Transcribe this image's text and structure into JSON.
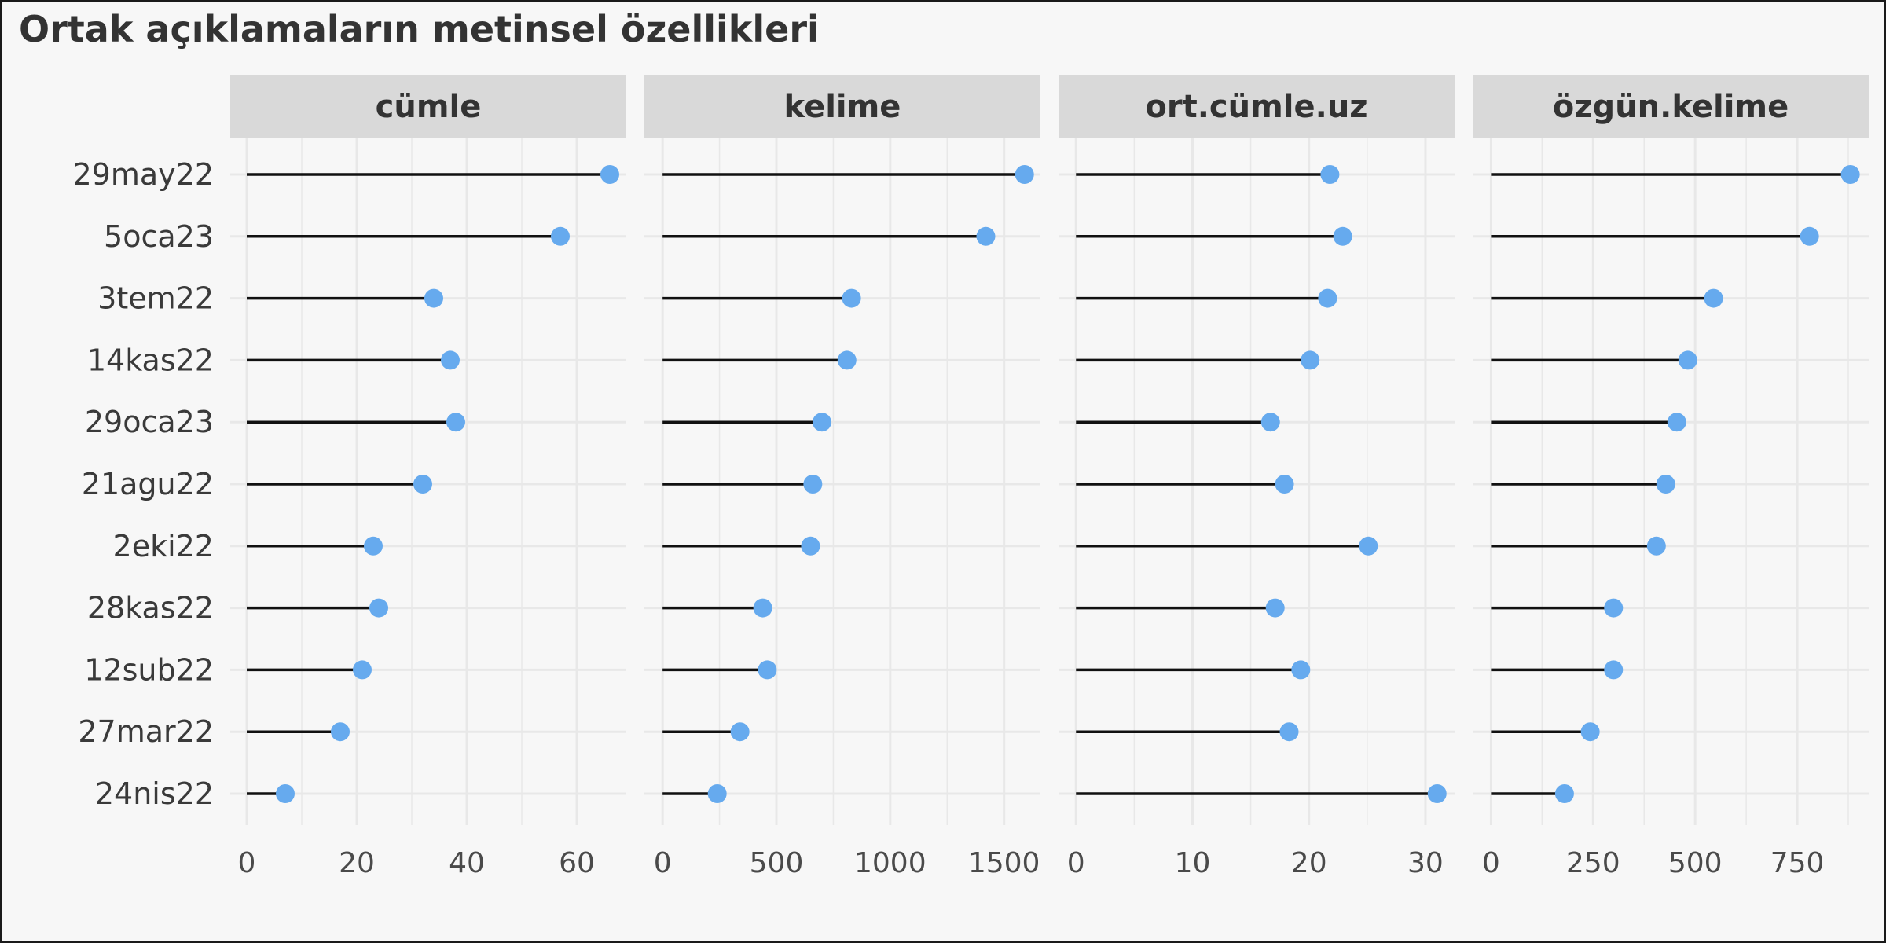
{
  "title": "Ortak açıklamaların metinsel özellikleri",
  "colors": {
    "point": "#66aaee",
    "segment": "#111111",
    "strip": "#d9d9d9",
    "grid": "#e8e8e8"
  },
  "chart_data": {
    "type": "lollipop",
    "categories": [
      "29may22",
      "5oca23",
      "3tem22",
      "14kas22",
      "29oca23",
      "21agu22",
      "2eki22",
      "28kas22",
      "12sub22",
      "27mar22",
      "24nis22"
    ],
    "panels": [
      {
        "label": "cümle",
        "values": [
          66,
          57,
          34,
          37,
          38,
          32,
          23,
          24,
          21,
          17,
          7
        ],
        "xlim": [
          -3,
          69
        ],
        "ticks": [
          0,
          20,
          40,
          60
        ],
        "tick_labels": [
          "0",
          "20",
          "40",
          "60"
        ]
      },
      {
        "label": "kelime",
        "values": [
          1590,
          1420,
          830,
          810,
          700,
          660,
          650,
          440,
          460,
          340,
          240
        ],
        "xlim": [
          -80,
          1660
        ],
        "ticks": [
          0,
          500,
          1000,
          1500
        ],
        "tick_labels": [
          "0",
          "500",
          "1000",
          "1500"
        ]
      },
      {
        "label": "ort.cümle.uz",
        "values": [
          21.8,
          22.9,
          21.6,
          20.1,
          16.7,
          17.9,
          25.1,
          17.1,
          19.3,
          18.3,
          31.0
        ],
        "xlim": [
          -1.5,
          32.5
        ],
        "ticks": [
          0,
          10,
          20,
          30
        ],
        "tick_labels": [
          "0",
          "10",
          "20",
          "30"
        ]
      },
      {
        "label": "özgün.kelime",
        "values": [
          880,
          780,
          545,
          482,
          455,
          428,
          405,
          300,
          300,
          243,
          180
        ],
        "xlim": [
          -45,
          925
        ],
        "ticks": [
          0,
          250,
          500,
          750
        ],
        "tick_labels": [
          "0",
          "250",
          "500",
          "750"
        ]
      }
    ]
  }
}
